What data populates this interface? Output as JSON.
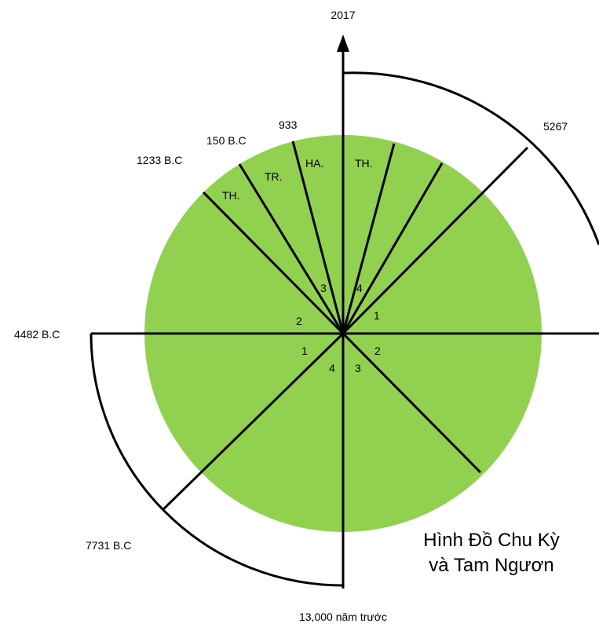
{
  "diagram": {
    "title_line1": "Hình Đồ Chu Kỳ",
    "title_line2": "và Tam Ngươn",
    "fill_color": "#92d050",
    "line_color": "#000000",
    "axis_labels": {
      "top": "2017",
      "bottom": "13,000 năm trước",
      "left": "4482 B.C"
    },
    "outer_labels": {
      "upper_right": "5267",
      "lower_left": "7731 B.C"
    },
    "top_labels": {
      "l933": "933",
      "l150": "150 B.C",
      "l1233": "1233 B.C"
    },
    "segment_labels": {
      "th_left": "TH.",
      "tr": "TR.",
      "ha": "HA.",
      "th_right": "TH."
    },
    "numbers": {
      "upper_left_3": "3",
      "upper_right_4": "4",
      "upper_left_2": "2",
      "upper_right_1": "1",
      "lower_left_1": "1",
      "lower_left_4": "4",
      "lower_right_3": "3",
      "lower_right_2": "2"
    }
  }
}
